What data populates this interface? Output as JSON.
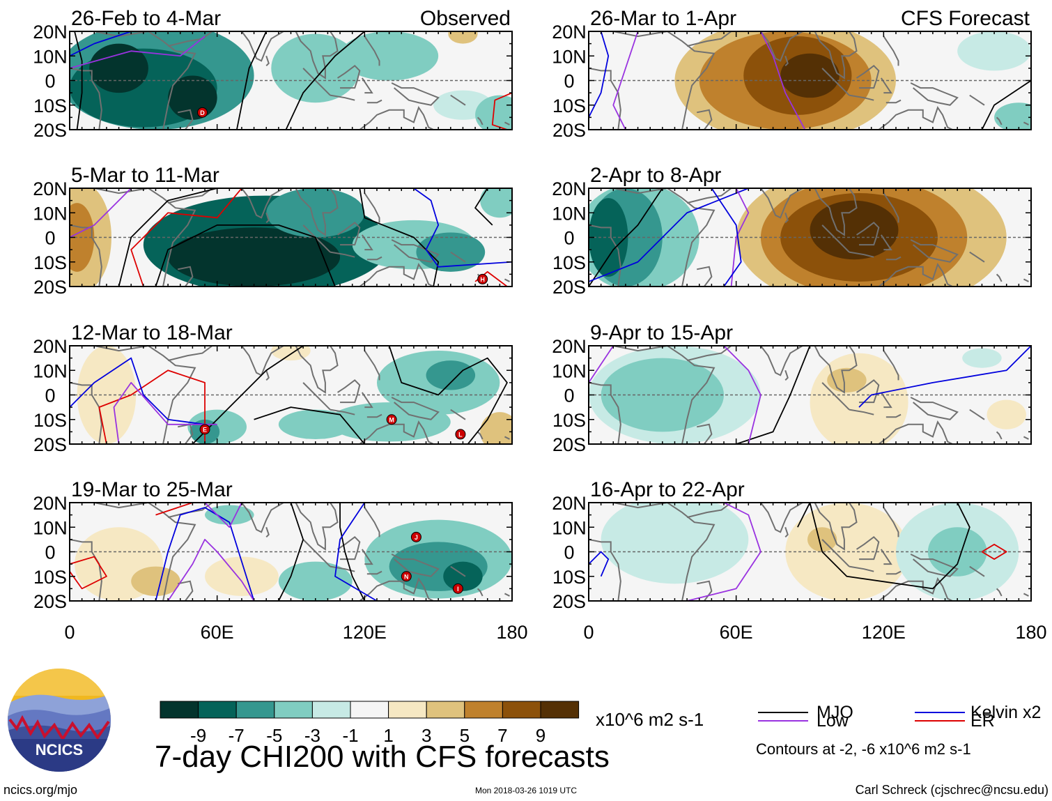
{
  "chart_data": {
    "type": "heatmap",
    "variable": "7-day CHI200 with CFS forecasts",
    "units": "x10^6 m2 s-1",
    "xlim": [
      0,
      180
    ],
    "ylim": [
      -20,
      20
    ],
    "x_ticks": [
      "0",
      "60E",
      "120E",
      "180"
    ],
    "y_ticks": [
      "20N",
      "10N",
      "0",
      "10S",
      "20S"
    ],
    "columns": [
      {
        "header": "Observed",
        "panels": [
          {
            "title": "26-Feb to 4-Mar",
            "blobs": [
              {
                "lon": 35,
                "lat": 2,
                "rx": 40,
                "ry": 22,
                "v": -5
              },
              {
                "lon": 30,
                "lat": -3,
                "rx": 30,
                "ry": 16,
                "v": -7
              },
              {
                "lon": 50,
                "lat": -7,
                "rx": 10,
                "ry": 9,
                "v": -9
              },
              {
                "lon": 20,
                "lat": 5,
                "rx": 12,
                "ry": 10,
                "v": -9
              },
              {
                "lon": 100,
                "lat": 5,
                "rx": 18,
                "ry": 14,
                "v": -3
              },
              {
                "lon": 130,
                "lat": 10,
                "rx": 20,
                "ry": 10,
                "v": -3
              },
              {
                "lon": 160,
                "lat": -10,
                "rx": 12,
                "ry": 6,
                "v": -1
              },
              {
                "lon": 175,
                "lat": -14,
                "rx": 10,
                "ry": 8,
                "v": -3
              },
              {
                "lon": 160,
                "lat": 19,
                "rx": 6,
                "ry": 4,
                "v": 3
              }
            ],
            "storms": [
              {
                "label": "D",
                "lon": 54,
                "lat": -13
              }
            ]
          },
          {
            "title": "5-Mar to 11-Mar",
            "blobs": [
              {
                "lon": 80,
                "lat": -3,
                "rx": 50,
                "ry": 20,
                "v": -7
              },
              {
                "lon": 75,
                "lat": -8,
                "rx": 35,
                "ry": 12,
                "v": -9
              },
              {
                "lon": 100,
                "lat": 10,
                "rx": 20,
                "ry": 10,
                "v": -5
              },
              {
                "lon": 140,
                "lat": -3,
                "rx": 25,
                "ry": 10,
                "v": -3
              },
              {
                "lon": 155,
                "lat": -6,
                "rx": 14,
                "ry": 8,
                "v": -5
              },
              {
                "lon": 175,
                "lat": 15,
                "rx": 8,
                "ry": 7,
                "v": -3
              },
              {
                "lon": 5,
                "lat": 0,
                "rx": 12,
                "ry": 22,
                "v": 3
              },
              {
                "lon": 3,
                "lat": 0,
                "rx": 7,
                "ry": 14,
                "v": 5
              }
            ],
            "storms": [
              {
                "label": "H",
                "lon": 168,
                "lat": -17
              }
            ]
          },
          {
            "title": "12-Mar to 18-Mar",
            "blobs": [
              {
                "lon": 150,
                "lat": 5,
                "rx": 25,
                "ry": 13,
                "v": -3
              },
              {
                "lon": 155,
                "lat": 8,
                "rx": 10,
                "ry": 6,
                "v": -5
              },
              {
                "lon": 130,
                "lat": -11,
                "rx": 25,
                "ry": 8,
                "v": -3
              },
              {
                "lon": 100,
                "lat": -12,
                "rx": 15,
                "ry": 6,
                "v": -3
              },
              {
                "lon": 60,
                "lat": -13,
                "rx": 12,
                "ry": 7,
                "v": -3
              },
              {
                "lon": 55,
                "lat": -15,
                "rx": 6,
                "ry": 5,
                "v": -5
              },
              {
                "lon": 175,
                "lat": -15,
                "rx": 8,
                "ry": 8,
                "v": 3
              },
              {
                "lon": 15,
                "lat": 0,
                "rx": 12,
                "ry": 20,
                "v": 1
              },
              {
                "lon": 90,
                "lat": 18,
                "rx": 8,
                "ry": 4,
                "v": 1
              }
            ],
            "storms": [
              {
                "label": "E",
                "lon": 55,
                "lat": -14
              },
              {
                "label": "M",
                "lon": 131,
                "lat": -10
              },
              {
                "label": "L",
                "lon": 159,
                "lat": -16
              }
            ]
          },
          {
            "title": "19-Mar to 25-Mar",
            "blobs": [
              {
                "lon": 150,
                "lat": -3,
                "rx": 30,
                "ry": 16,
                "v": -3
              },
              {
                "lon": 150,
                "lat": -6,
                "rx": 20,
                "ry": 10,
                "v": -5
              },
              {
                "lon": 160,
                "lat": -10,
                "rx": 8,
                "ry": 6,
                "v": -7
              },
              {
                "lon": 100,
                "lat": -12,
                "rx": 15,
                "ry": 8,
                "v": -3
              },
              {
                "lon": 65,
                "lat": 15,
                "rx": 10,
                "ry": 4,
                "v": -3
              },
              {
                "lon": 20,
                "lat": -5,
                "rx": 18,
                "ry": 15,
                "v": 1
              },
              {
                "lon": 35,
                "lat": -12,
                "rx": 10,
                "ry": 6,
                "v": 3
              },
              {
                "lon": 70,
                "lat": -10,
                "rx": 15,
                "ry": 8,
                "v": 1
              }
            ],
            "storms": [
              {
                "label": "J",
                "lon": 141,
                "lat": 6
              },
              {
                "label": "N",
                "lon": 137,
                "lat": -10
              },
              {
                "label": "I",
                "lon": 158,
                "lat": -15
              }
            ]
          }
        ]
      },
      {
        "header": "CFS Forecast",
        "panels": [
          {
            "title": "26-Mar to 1-Apr",
            "blobs": [
              {
                "lon": 80,
                "lat": 0,
                "rx": 45,
                "ry": 25,
                "v": 3
              },
              {
                "lon": 80,
                "lat": 0,
                "rx": 35,
                "ry": 20,
                "v": 5
              },
              {
                "lon": 85,
                "lat": 2,
                "rx": 22,
                "ry": 16,
                "v": 7
              },
              {
                "lon": 90,
                "lat": 2,
                "rx": 12,
                "ry": 9,
                "v": 9
              },
              {
                "lon": 175,
                "lat": -15,
                "rx": 10,
                "ry": 6,
                "v": -3
              },
              {
                "lon": 165,
                "lat": 12,
                "rx": 15,
                "ry": 8,
                "v": -1
              }
            ],
            "storms": []
          },
          {
            "title": "2-Apr to 8-Apr",
            "blobs": [
              {
                "lon": 115,
                "lat": 0,
                "rx": 55,
                "ry": 30,
                "v": 3
              },
              {
                "lon": 112,
                "lat": 0,
                "rx": 42,
                "ry": 24,
                "v": 5
              },
              {
                "lon": 110,
                "lat": 0,
                "rx": 32,
                "ry": 18,
                "v": 7
              },
              {
                "lon": 108,
                "lat": 3,
                "rx": 18,
                "ry": 12,
                "v": 9
              },
              {
                "lon": 20,
                "lat": 0,
                "rx": 25,
                "ry": 22,
                "v": -3
              },
              {
                "lon": 15,
                "lat": 0,
                "rx": 15,
                "ry": 20,
                "v": -5
              },
              {
                "lon": 8,
                "lat": 0,
                "rx": 8,
                "ry": 16,
                "v": -7
              }
            ],
            "storms": []
          },
          {
            "title": "9-Apr to 15-Apr",
            "blobs": [
              {
                "lon": 35,
                "lat": 0,
                "rx": 35,
                "ry": 20,
                "v": -1
              },
              {
                "lon": 30,
                "lat": 0,
                "rx": 25,
                "ry": 15,
                "v": -3
              },
              {
                "lon": 110,
                "lat": -3,
                "rx": 20,
                "ry": 20,
                "v": 1
              },
              {
                "lon": 105,
                "lat": 6,
                "rx": 8,
                "ry": 5,
                "v": 3
              },
              {
                "lon": 170,
                "lat": -8,
                "rx": 8,
                "ry": 6,
                "v": 1
              },
              {
                "lon": 160,
                "lat": 15,
                "rx": 8,
                "ry": 4,
                "v": -1
              }
            ],
            "storms": []
          },
          {
            "title": "16-Apr to 22-Apr",
            "blobs": [
              {
                "lon": 35,
                "lat": 5,
                "rx": 30,
                "ry": 18,
                "v": -1
              },
              {
                "lon": 105,
                "lat": 0,
                "rx": 25,
                "ry": 20,
                "v": 1
              },
              {
                "lon": 95,
                "lat": 5,
                "rx": 6,
                "ry": 5,
                "v": 3
              },
              {
                "lon": 150,
                "lat": 0,
                "rx": 25,
                "ry": 20,
                "v": -1
              },
              {
                "lon": 150,
                "lat": 0,
                "rx": 12,
                "ry": 10,
                "v": -3
              }
            ],
            "storms": []
          }
        ]
      }
    ],
    "colorbar": {
      "labels": [
        "-9",
        "-7",
        "-5",
        "-3",
        "-1",
        "1",
        "3",
        "5",
        "7",
        "9"
      ],
      "colors": [
        "#03342d",
        "#056359",
        "#35978f",
        "#80cdc1",
        "#c7eae5",
        "#f5f5f5",
        "#f6e8c3",
        "#dfc27d",
        "#bf812d",
        "#8c510a",
        "#543005"
      ],
      "units": "x10^6 m2 s-1"
    },
    "legend": {
      "items": [
        {
          "label": "MJO",
          "color": "#000000"
        },
        {
          "label": "Kelvin x2",
          "color": "#0000dd"
        },
        {
          "label": "Low",
          "color": "#9932e0"
        },
        {
          "label": "ER",
          "color": "#dd0000"
        }
      ],
      "note": "Contours at -2, -6 x10^6 m2 s-1"
    }
  },
  "footer": {
    "main_title": "7-day CHI200 with CFS forecasts",
    "website": "ncics.org/mjo",
    "timestamp": "Mon 2018-03-26 1019 UTC",
    "credit": "Carl Schreck (cjschrec@ncsu.edu)",
    "logo_text": "NCICS"
  },
  "colors": {
    "land_outline": "#707070",
    "equator": "#666666"
  }
}
